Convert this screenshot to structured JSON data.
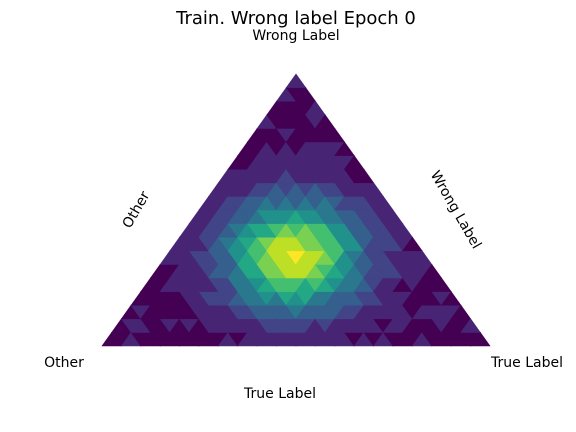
{
  "chart_data": {
    "type": "heatmap",
    "subtype": "ternary-density",
    "title": "Train. Wrong label Epoch 0",
    "vertices": {
      "top": "Wrong Label",
      "left": "Other",
      "right": "True Label"
    },
    "edge_labels": {
      "left": "Other",
      "right": "Wrong Label",
      "bottom": "True Label"
    },
    "colormap": "viridis",
    "grid": false,
    "peak": {
      "true_label": 0.33,
      "wrong_label": 0.33,
      "other": 0.34,
      "density": 0.92
    },
    "spread": 0.12,
    "colors": [
      "#440154",
      "#482475",
      "#414487",
      "#355f8d",
      "#2a788e",
      "#21918c",
      "#22a884",
      "#44bf70",
      "#7ad151",
      "#bddf26",
      "#fde725"
    ]
  }
}
